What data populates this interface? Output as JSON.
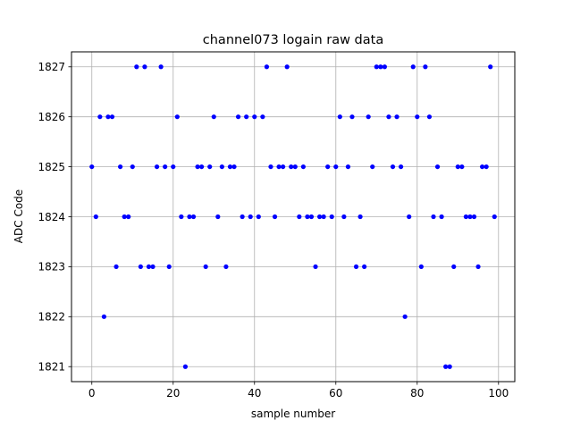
{
  "chart_data": {
    "type": "scatter",
    "title": "channel073 logain raw data",
    "xlabel": "sample number",
    "ylabel": "ADC Code",
    "xlim": [
      -5,
      104
    ],
    "ylim": [
      1820.7,
      1827.3
    ],
    "x_ticks": [
      0,
      20,
      40,
      60,
      80,
      100
    ],
    "y_ticks": [
      1821,
      1822,
      1823,
      1824,
      1825,
      1826,
      1827
    ],
    "grid": true,
    "marker_color": "#0000ff",
    "series": [
      {
        "x": [
          0,
          1,
          2,
          3,
          4,
          5,
          6,
          7,
          8,
          9,
          10,
          11,
          12,
          13,
          14,
          15,
          16,
          17,
          18,
          19,
          20,
          21,
          22,
          23,
          24,
          25,
          26,
          27,
          28,
          29,
          30,
          31,
          32,
          33,
          34,
          35,
          36,
          37,
          38,
          39,
          40,
          41,
          42,
          43,
          44,
          45,
          46,
          47,
          48,
          49,
          50,
          51,
          52,
          53,
          54,
          55,
          56,
          57,
          58,
          59,
          60,
          61,
          62,
          63,
          64,
          65,
          66,
          67,
          68,
          69,
          70,
          71,
          72,
          73,
          74,
          75,
          76,
          77,
          78,
          79,
          80,
          81,
          82,
          83,
          84,
          85,
          86,
          87,
          88,
          89,
          90,
          91,
          92,
          93,
          94,
          95,
          96,
          97,
          98,
          99
        ],
        "y": [
          1825,
          1824,
          1826,
          1822,
          1826,
          1826,
          1823,
          1825,
          1824,
          1824,
          1825,
          1827,
          1823,
          1827,
          1823,
          1823,
          1825,
          1827,
          1825,
          1823,
          1825,
          1826,
          1824,
          1821,
          1824,
          1824,
          1825,
          1825,
          1823,
          1825,
          1826,
          1824,
          1825,
          1823,
          1825,
          1825,
          1826,
          1824,
          1826,
          1824,
          1826,
          1824,
          1826,
          1827,
          1825,
          1824,
          1825,
          1825,
          1827,
          1825,
          1825,
          1824,
          1825,
          1824,
          1824,
          1823,
          1824,
          1824,
          1825,
          1824,
          1825,
          1826,
          1824,
          1825,
          1826,
          1823,
          1824,
          1823,
          1826,
          1825,
          1827,
          1827,
          1827,
          1826,
          1825,
          1826,
          1825,
          1822,
          1824,
          1827,
          1826,
          1823,
          1827,
          1826,
          1824,
          1825,
          1824,
          1821,
          1821,
          1823,
          1825,
          1825,
          1824,
          1824,
          1824,
          1823,
          1825,
          1825,
          1827,
          1824
        ]
      }
    ]
  }
}
